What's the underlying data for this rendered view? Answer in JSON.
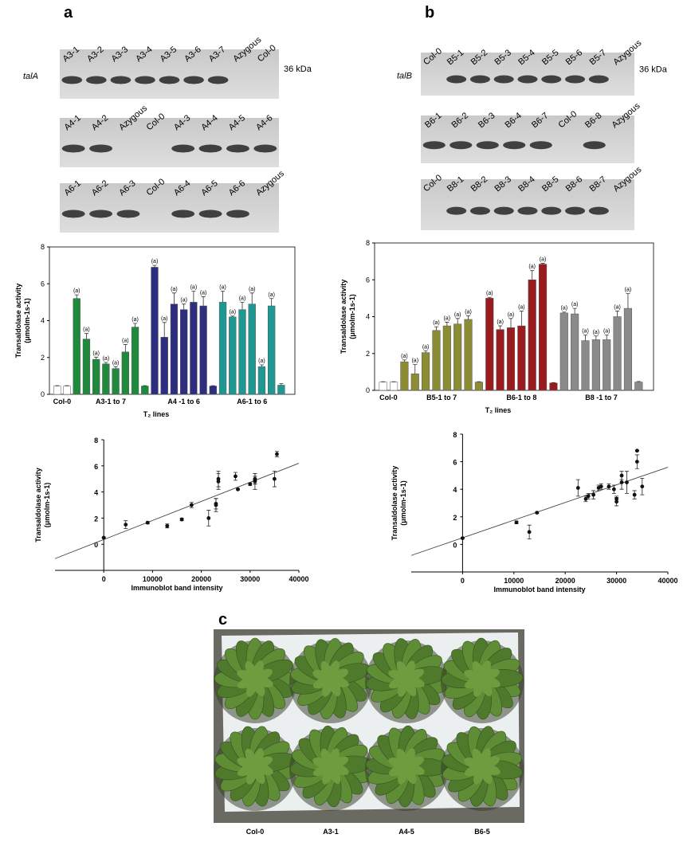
{
  "panel_labels": [
    "a",
    "b",
    "c"
  ],
  "blots": [
    {
      "gene": "talA",
      "size": "36 kDa",
      "rows": [
        [
          "A3-1",
          "A3-2",
          "A3-3",
          "A3-4",
          "A3-5",
          "A3-6",
          "A3-7",
          "Azygous",
          "Col-0"
        ],
        [
          "A4-1",
          "A4-2",
          "Azygous",
          "Col-0",
          "A4-3",
          "A4-4",
          "A4-5",
          "A4-6"
        ],
        [
          "A6-1",
          "A6-2",
          "A6-3",
          "Col-0",
          "A6-4",
          "A6-5",
          "A6-6",
          "Azygous"
        ]
      ]
    },
    {
      "gene": "talB",
      "size": "36 kDa",
      "rows": [
        [
          "Col-0",
          "B5-1",
          "B5-2",
          "B5-3",
          "B5-4",
          "B5-5",
          "B5-6",
          "B5-7",
          "Azygous"
        ],
        [
          "B6-1",
          "B6-2",
          "B6-3",
          "B6-4",
          "B6-7",
          "Col-0",
          "B6-8",
          "Azygous"
        ],
        [
          "Col-0",
          "B8-1",
          "B8-2",
          "B8-3",
          "B8-4",
          "B8-5",
          "B8-6",
          "B8-7",
          "Azygous"
        ]
      ]
    }
  ],
  "chart_data": [
    {
      "type": "bar",
      "ylabel": "Transaldolase activity",
      "ylabel_unit": "(μmolm-1s-1)",
      "xlabel": "T₂ lines",
      "ylim": [
        0,
        8
      ],
      "yticks": [
        0,
        2,
        4,
        6,
        8
      ],
      "groups": [
        {
          "label": "Col-0",
          "color": "#ffffff",
          "values": [
            0.45,
            0.45
          ],
          "errors": [
            0.02,
            0.02
          ],
          "letters": [
            null,
            null
          ]
        },
        {
          "label": "A3-1 to 7",
          "color": "#1f8a3b",
          "values": [
            5.2,
            3.0,
            1.9,
            1.65,
            1.4,
            2.3,
            3.65,
            0.45
          ],
          "errors": [
            0.2,
            0.3,
            0.12,
            0.08,
            0.1,
            0.4,
            0.2,
            0.02
          ],
          "letters": [
            "(a)",
            "(a)",
            "(a)",
            "(a)",
            "(a)",
            "(a)",
            "(a)",
            null
          ]
        },
        {
          "label": "A4 -1 to 6",
          "color": "#2e2e80",
          "values": [
            6.9,
            3.1,
            4.9,
            4.6,
            5.0,
            4.8,
            0.45
          ],
          "errors": [
            0.1,
            0.8,
            0.6,
            0.3,
            0.6,
            0.5,
            0.02
          ],
          "letters": [
            "(a)",
            "(a)",
            "(a)",
            "(a)",
            "(a)",
            "(a)",
            null
          ]
        },
        {
          "label": "A6-1 to 6",
          "color": "#1f9893",
          "values": [
            5.0,
            4.2,
            4.6,
            4.9,
            1.5,
            4.8,
            0.5
          ],
          "errors": [
            0.6,
            0.05,
            0.4,
            0.6,
            0.1,
            0.4,
            0.08
          ],
          "letters": [
            "(a)",
            "(a)",
            "(a)",
            "(a)",
            "(a)",
            "(a)",
            null
          ]
        }
      ]
    },
    {
      "type": "bar",
      "ylabel": "Transaldolase activity",
      "ylabel_unit": "(μmolm-1s-1)",
      "xlabel": "T₂ lines",
      "ylim": [
        0,
        8
      ],
      "yticks": [
        0,
        2,
        4,
        6,
        8
      ],
      "groups": [
        {
          "label": "Col-0",
          "color": "#ffffff",
          "values": [
            0.45,
            0.45
          ],
          "errors": [
            0.02,
            0.02
          ],
          "letters": [
            null,
            null
          ]
        },
        {
          "label": "B5-1 to 7",
          "color": "#8b8c34",
          "values": [
            1.55,
            0.9,
            2.05,
            3.25,
            3.5,
            3.6,
            3.85,
            0.45
          ],
          "errors": [
            0.1,
            0.5,
            0.1,
            0.2,
            0.2,
            0.3,
            0.2,
            0.02
          ],
          "letters": [
            "(a)",
            "(a)",
            "(a)",
            "(a)",
            "(a)",
            "(a)",
            "(a)",
            null
          ]
        },
        {
          "label": "B6-1 to 8",
          "color": "#9a1b1e",
          "values": [
            5.0,
            3.3,
            3.4,
            3.5,
            6.0,
            6.85,
            0.4
          ],
          "errors": [
            0.05,
            0.2,
            0.5,
            0.8,
            0.5,
            0.05,
            0.02
          ],
          "letters": [
            "(a)",
            "(a)",
            "(a)",
            "(a)",
            "(a)",
            "(a)",
            null
          ]
        },
        {
          "label": "B8 -1 to 7",
          "color": "#8a8a8a",
          "values": [
            4.2,
            4.15,
            2.7,
            2.75,
            2.75,
            4.0,
            4.45,
            0.45
          ],
          "errors": [
            0.05,
            0.3,
            0.3,
            0.2,
            0.25,
            0.3,
            0.8,
            0.03
          ],
          "letters": [
            "(a)",
            "(a)",
            "(a)",
            "(a)",
            "(a)",
            "(a)",
            "(a)",
            null
          ]
        }
      ]
    },
    {
      "type": "scatter",
      "ylabel": "Transaldolase activity",
      "ylabel_unit": "(μmolm-1s-1)",
      "xlabel": "Immunoblot band intensity",
      "xlim": [
        -10000,
        40000
      ],
      "xticks": [
        0,
        10000,
        20000,
        30000,
        40000
      ],
      "ylim": [
        -2,
        8
      ],
      "yticks": [
        0,
        2,
        4,
        6,
        8
      ],
      "x": [
        0,
        4500,
        9000,
        13000,
        16000,
        18000,
        21500,
        23000,
        23000,
        23500,
        23500,
        27000,
        27500,
        30000,
        31000,
        31000,
        31000,
        35000,
        35500
      ],
      "y": [
        0.5,
        1.5,
        1.65,
        1.4,
        1.9,
        3.0,
        2.0,
        3.1,
        3.0,
        4.8,
        5.0,
        5.2,
        4.2,
        4.6,
        4.8,
        5.0,
        4.9,
        5.0,
        6.9
      ],
      "errors": [
        0.05,
        0.3,
        0.08,
        0.15,
        0.1,
        0.2,
        0.6,
        0.4,
        0.5,
        0.6,
        0.6,
        0.3,
        0.05,
        0.1,
        0.6,
        0.4,
        0.3,
        0.6,
        0.2
      ],
      "trendline": {
        "x": [
          -10000,
          40000
        ],
        "y": [
          -1.1,
          6.2
        ]
      }
    },
    {
      "type": "scatter",
      "ylabel": "Transaldolase activity",
      "ylabel_unit": "(μmolm-1s-1)",
      "xlabel": "Immunoblot band intensity",
      "xlim": [
        -10000,
        40000
      ],
      "xticks": [
        0,
        10000,
        20000,
        30000,
        40000
      ],
      "ylim": [
        -2,
        8
      ],
      "yticks": [
        0,
        2,
        4,
        6,
        8
      ],
      "x": [
        0,
        10500,
        13000,
        14500,
        22500,
        24000,
        24500,
        25500,
        26500,
        27000,
        28500,
        29500,
        30000,
        30000,
        31000,
        31000,
        32000,
        33500,
        34000,
        34000,
        35000
      ],
      "y": [
        0.45,
        1.6,
        0.9,
        2.3,
        4.1,
        3.3,
        3.5,
        3.6,
        4.1,
        4.2,
        4.2,
        4.0,
        3.1,
        3.3,
        4.5,
        5.0,
        4.5,
        3.6,
        6.0,
        6.8,
        4.2
      ],
      "errors": [
        0.05,
        0.1,
        0.5,
        0.05,
        0.6,
        0.2,
        0.2,
        0.3,
        0.2,
        0.2,
        0.2,
        0.3,
        0.3,
        0.2,
        0.5,
        0.3,
        0.8,
        0.3,
        0.5,
        0.05,
        0.6
      ],
      "trendline": {
        "x": [
          -10000,
          40000
        ],
        "y": [
          -0.8,
          5.6
        ]
      }
    }
  ],
  "photo": {
    "labels": [
      "Col-0",
      "A3-1",
      "A4-5",
      "B6-5"
    ]
  }
}
